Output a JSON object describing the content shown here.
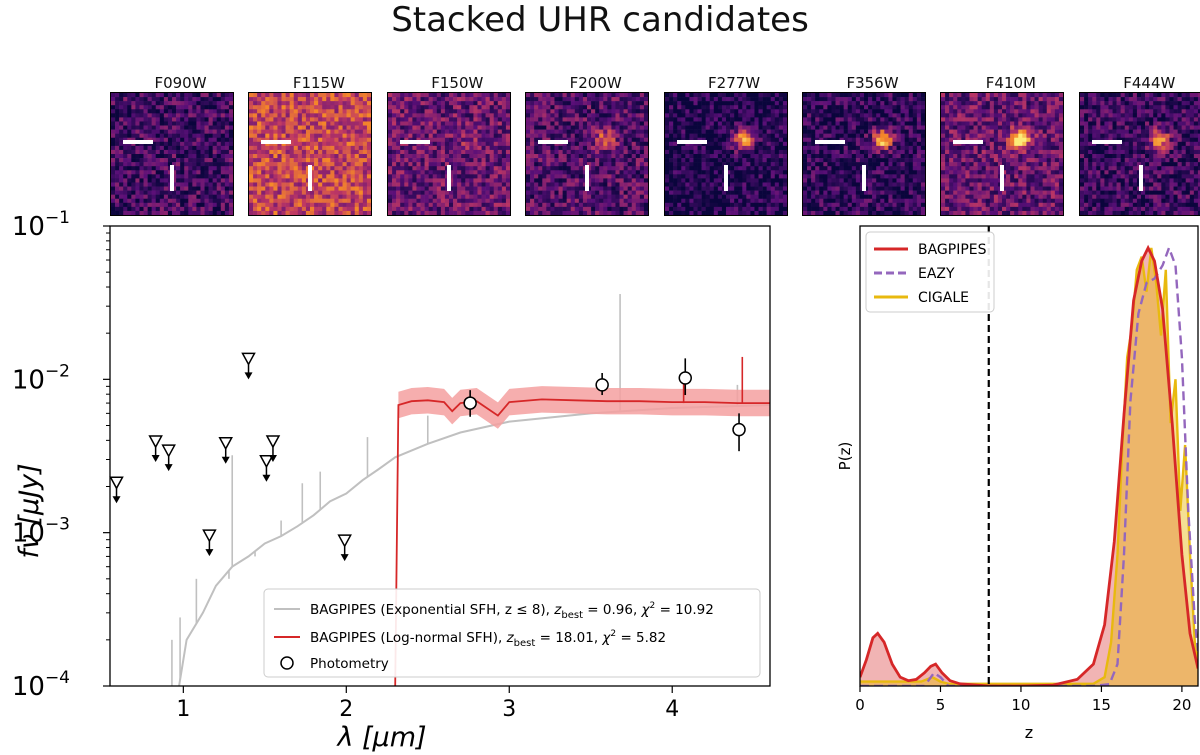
{
  "title": "Stacked UHR candidates",
  "stamps": [
    {
      "filter": "F090W",
      "style": "noise",
      "brightness": 0.18,
      "source": 0.0
    },
    {
      "filter": "F115W",
      "style": "noise",
      "brightness": 0.55,
      "source": 0.0
    },
    {
      "filter": "F150W",
      "style": "noise",
      "brightness": 0.28,
      "source": 0.15
    },
    {
      "filter": "F200W",
      "style": "noise",
      "brightness": 0.22,
      "source": 0.5
    },
    {
      "filter": "F277W",
      "style": "source",
      "brightness": 0.08,
      "source": 1.0
    },
    {
      "filter": "F356W",
      "style": "source",
      "brightness": 0.12,
      "source": 0.95
    },
    {
      "filter": "F410M",
      "style": "source",
      "brightness": 0.28,
      "source": 0.9
    },
    {
      "filter": "F444W",
      "style": "source",
      "brightness": 0.15,
      "source": 0.8
    }
  ],
  "colors": {
    "red": "#d62728",
    "gray": "#c0c0c0",
    "purple": "#9467bd",
    "gold": "#e8b90f",
    "fill": "#f4a0a0"
  },
  "chart_data": [
    {
      "type": "line",
      "title": "",
      "xlabel": "λ [μm]",
      "ylabel": "fν [μJy]",
      "xscale": "linear",
      "yscale": "log",
      "xlim": [
        0.55,
        4.6
      ],
      "ylim": [
        0.0001,
        0.1
      ],
      "x_ticks": [
        1,
        2,
        3,
        4
      ],
      "y_ticks": [
        {
          "value": 0.0001,
          "base": "10",
          "exp": "−4"
        },
        {
          "value": 0.001,
          "base": "10",
          "exp": "−3"
        },
        {
          "value": 0.01,
          "base": "10",
          "exp": "−2"
        },
        {
          "value": 0.1,
          "base": "10",
          "exp": "−1"
        }
      ],
      "series": [
        {
          "name": "BAGPIPES (Exponential SFH, z ≤ 8), z_best = 0.96, χ² = 10.92",
          "legend_text": "BAGPIPES (Exponential SFH, z ≤ 8), ",
          "legend_z": "0.96",
          "legend_chi2": "10.92",
          "color": "gray",
          "x": [
            0.95,
            1.02,
            1.12,
            1.2,
            1.3,
            1.4,
            1.5,
            1.6,
            1.7,
            1.8,
            1.9,
            2.0,
            2.1,
            2.2,
            2.3,
            2.5,
            2.7,
            3.0,
            3.5,
            4.0,
            4.6
          ],
          "y": [
            7e-05,
            0.0002,
            0.0003,
            0.00045,
            0.0006,
            0.0007,
            0.00085,
            0.00095,
            0.0011,
            0.0013,
            0.0016,
            0.0018,
            0.0022,
            0.0026,
            0.0031,
            0.0038,
            0.0045,
            0.0053,
            0.006,
            0.0065,
            0.0068
          ],
          "emission_lines": [
            {
              "x": 0.93,
              "peak": 0.0002
            },
            {
              "x": 0.98,
              "peak": 0.00028
            },
            {
              "x": 1.08,
              "peak": 0.0005
            },
            {
              "x": 1.28,
              "peak": 0.0005
            },
            {
              "x": 1.3,
              "peak": 0.0032
            },
            {
              "x": 1.44,
              "peak": 0.0007
            },
            {
              "x": 1.6,
              "peak": 0.0012
            },
            {
              "x": 1.73,
              "peak": 0.0021
            },
            {
              "x": 1.84,
              "peak": 0.0025
            },
            {
              "x": 2.13,
              "peak": 0.0042
            },
            {
              "x": 2.5,
              "peak": 0.0058
            },
            {
              "x": 3.68,
              "peak": 0.036
            },
            {
              "x": 4.4,
              "peak": 0.0092
            }
          ]
        },
        {
          "name": "BAGPIPES (Log-normal SFH), z_best = 18.01, χ² = 5.82",
          "legend_text": "BAGPIPES (Log-normal SFH), ",
          "legend_z": "18.01",
          "legend_chi2": "5.82",
          "color": "red",
          "x": [
            2.3,
            2.32,
            2.4,
            2.5,
            2.6,
            2.65,
            2.7,
            2.8,
            2.93,
            3.0,
            3.2,
            3.4,
            3.6,
            3.8,
            4.0,
            4.2,
            4.4,
            4.6
          ],
          "y": [
            0.0001,
            0.0068,
            0.0072,
            0.0073,
            0.0071,
            0.0062,
            0.007,
            0.0072,
            0.0058,
            0.0071,
            0.0074,
            0.0073,
            0.0072,
            0.0072,
            0.0071,
            0.0071,
            0.007,
            0.007
          ],
          "band_lower_factor": 0.82,
          "band_upper_factor": 1.22,
          "emission_lines": [
            {
              "x": 4.07,
              "peak": 0.0105
            },
            {
              "x": 4.43,
              "peak": 0.014
            }
          ]
        },
        {
          "name": "Photometry",
          "type": "errorbar",
          "x": [
            2.76,
            3.57,
            4.08,
            4.41
          ],
          "y": [
            0.007,
            0.0092,
            0.0102,
            0.0047
          ],
          "yerr_low": [
            0.0057,
            0.0079,
            0.0079,
            0.0034
          ],
          "yerr_high": [
            0.0085,
            0.011,
            0.0137,
            0.006
          ]
        },
        {
          "name": "Upper limits",
          "type": "upper_limit",
          "x": [
            0.59,
            0.83,
            0.91,
            1.16,
            1.26,
            1.4,
            1.51,
            1.55,
            1.99
          ],
          "y": [
            0.0021,
            0.0039,
            0.0034,
            0.00095,
            0.0038,
            0.0135,
            0.0029,
            0.0039,
            0.00088
          ]
        }
      ],
      "legend": {
        "location": "lower-right",
        "photometry_label": "Photometry"
      }
    },
    {
      "type": "area",
      "title": "",
      "xlabel": "z",
      "ylabel": "P(z)",
      "xlim": [
        0,
        21
      ],
      "ylim": [
        0,
        1.05
      ],
      "x_ticks": [
        0,
        5,
        10,
        15,
        20
      ],
      "vline": 8,
      "series": [
        {
          "name": "BAGPIPES",
          "color": "red",
          "style": "solid",
          "filled": true,
          "x": [
            0,
            0.4,
            0.8,
            1.1,
            1.5,
            2.0,
            2.5,
            3.0,
            3.5,
            4.0,
            4.4,
            4.7,
            5.1,
            5.6,
            6.2,
            8,
            10,
            12,
            13.5,
            14.5,
            15.2,
            15.8,
            16.4,
            17.0,
            17.5,
            17.9,
            18.3,
            18.8,
            19.4,
            20.0,
            20.5,
            21.0
          ],
          "y": [
            0.02,
            0.06,
            0.11,
            0.12,
            0.1,
            0.05,
            0.02,
            0.012,
            0.015,
            0.03,
            0.045,
            0.05,
            0.03,
            0.012,
            0.005,
            0.0,
            0.0,
            0.002,
            0.015,
            0.05,
            0.14,
            0.33,
            0.62,
            0.88,
            0.97,
            1.0,
            0.97,
            0.86,
            0.6,
            0.3,
            0.12,
            0.04
          ]
        },
        {
          "name": "EAZY",
          "color": "purple",
          "style": "dashed",
          "filled": false,
          "x": [
            0,
            4.0,
            4.6,
            5.0,
            5.5,
            14.5,
            15.5,
            16.0,
            16.4,
            16.8,
            17.3,
            17.8,
            18.3,
            18.8,
            19.2,
            19.6,
            20.0,
            20.4,
            20.8,
            21.0
          ],
          "y": [
            0.0,
            0.0,
            0.03,
            0.02,
            0.0,
            0.0,
            0.004,
            0.05,
            0.3,
            0.65,
            0.85,
            0.92,
            0.93,
            0.96,
            1.0,
            0.96,
            0.75,
            0.4,
            0.15,
            0.08
          ]
        },
        {
          "name": "CIGALE",
          "color": "gold",
          "style": "solid",
          "filled": true,
          "x": [
            0,
            3.8,
            4.5,
            5.0,
            5.5,
            14.5,
            15.2,
            15.6,
            16.0,
            16.3,
            16.6,
            16.9,
            17.2,
            17.5,
            17.8,
            18.1,
            18.4,
            18.7,
            19.0,
            19.3,
            19.6,
            19.9,
            20.2,
            20.5,
            20.8,
            21.0
          ],
          "y": [
            0.01,
            0.01,
            0.02,
            0.01,
            0.005,
            0.005,
            0.02,
            0.1,
            0.3,
            0.55,
            0.75,
            0.82,
            0.95,
            0.98,
            0.9,
            1.0,
            0.92,
            0.8,
            0.95,
            0.6,
            0.7,
            0.4,
            0.55,
            0.3,
            0.1,
            0.05
          ]
        }
      ],
      "legend": {
        "location": "top-left"
      }
    }
  ]
}
